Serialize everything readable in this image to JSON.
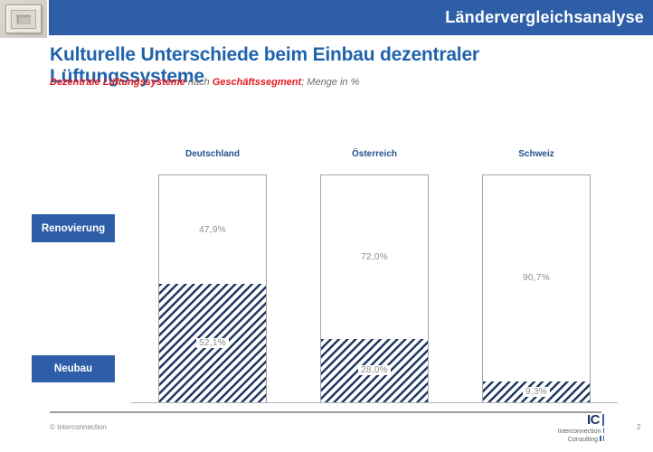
{
  "header": {
    "title": "Ländervergleichsanalyse"
  },
  "title": "Kulturelle Unterschiede beim Einbau dezentraler Lüftungssysteme",
  "subtitle": {
    "segment1": "Dezentrale Lüftungssysteme",
    "segment2": " nach ",
    "segment3": "Geschäftssegment",
    "segment4": "; Menge in %"
  },
  "chart_data": {
    "type": "bar",
    "stacked": true,
    "orientation": "vertical",
    "unit": "percent",
    "categories": [
      "Deutschland",
      "Österreich",
      "Schweiz"
    ],
    "series": [
      {
        "name": "Renovierung",
        "style": "solid-white",
        "values": [
          47.9,
          72.0,
          90.7
        ],
        "labels": [
          "47,9%",
          "72,0%",
          "90,7%"
        ]
      },
      {
        "name": "Neubau",
        "style": "diagonal-hatch",
        "values": [
          52.1,
          28.0,
          9.3
        ],
        "labels": [
          "52,1%",
          "28,0%",
          "9,3%"
        ]
      }
    ],
    "ylim": [
      0,
      100
    ],
    "legend_position": "left",
    "grid": false
  },
  "footer": {
    "copyright": "© Interconnection",
    "page_number": "2",
    "logo": {
      "monogram": "IC",
      "line1": "Interconnection",
      "line2": "Consulting"
    }
  },
  "colors": {
    "header_blue": "#2e5ea7",
    "title_blue": "#1e63ac",
    "navy": "#1f3864",
    "red": "#e0181e",
    "text_gray": "#6e6e6e",
    "label_gray": "#8c8c8c",
    "border_gray": "#a6a6a6"
  }
}
